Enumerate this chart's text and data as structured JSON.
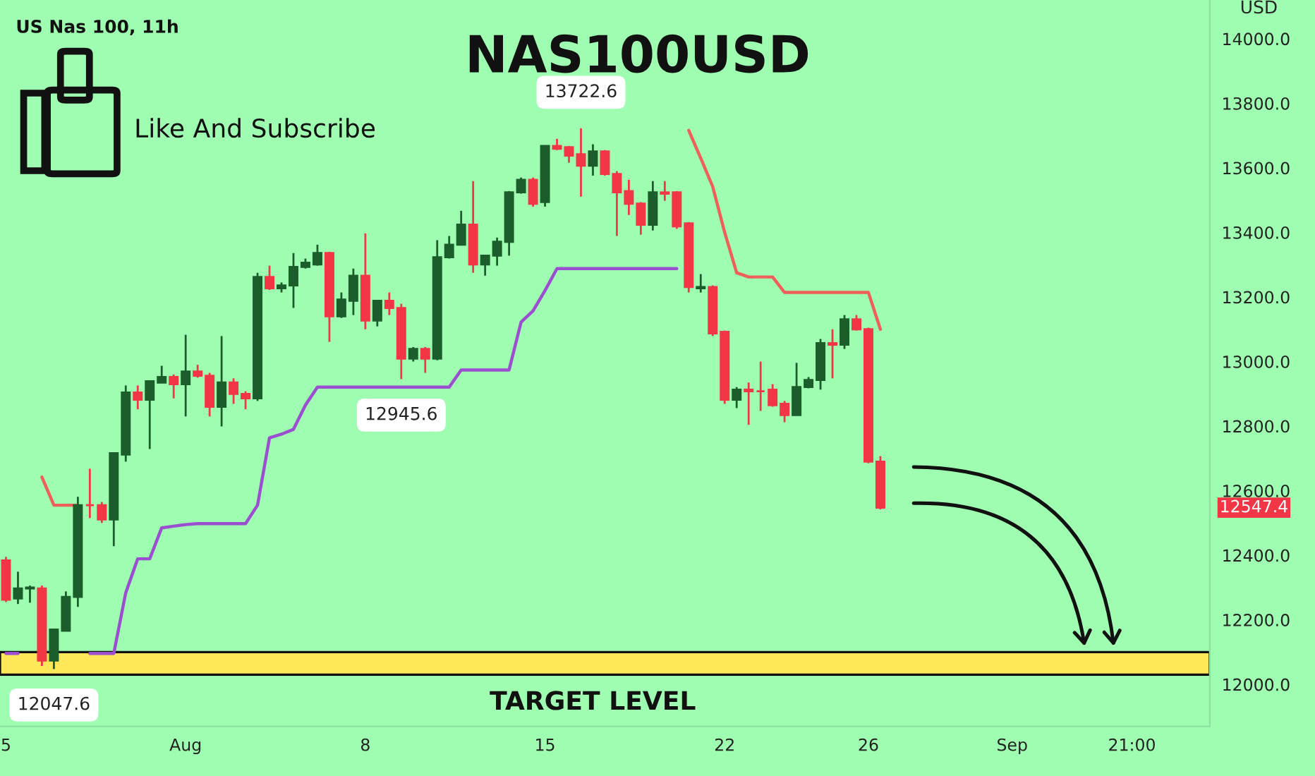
{
  "chart_data": {
    "type": "candlestick",
    "title": "NAS100USD",
    "ylabel": "USD",
    "categories": [
      "5",
      null,
      null,
      null,
      null,
      null,
      null,
      null,
      null,
      null,
      null,
      null,
      null,
      null,
      null,
      "Aug",
      null,
      null,
      null,
      null,
      null,
      null,
      null,
      null,
      null,
      null,
      null,
      null,
      null,
      null,
      "8",
      null,
      null,
      null,
      null,
      null,
      null,
      null,
      null,
      null,
      null,
      null,
      null,
      null,
      null,
      "15",
      null,
      null,
      null,
      null,
      null,
      null,
      null,
      null,
      null,
      null,
      null,
      null,
      null,
      null,
      "22",
      null,
      null,
      null,
      null,
      null,
      null,
      null,
      null,
      null,
      null,
      null,
      "26",
      null,
      null,
      null,
      null,
      null,
      null,
      null,
      null,
      null,
      null,
      null,
      "Sep",
      null,
      null,
      null,
      null,
      null,
      null,
      null,
      null,
      null,
      "21:00",
      null,
      null,
      null,
      null,
      null,
      null
    ],
    "ohlc": [
      [
        12384,
        12395,
        12255,
        12262
      ],
      [
        12266,
        12349,
        12249,
        12297
      ],
      [
        12297,
        12306,
        12253,
        12300
      ],
      [
        12297,
        12306,
        12057,
        12074
      ],
      [
        12074,
        12170,
        12047.6,
        12170
      ],
      [
        12166,
        12288,
        12166,
        12271
      ],
      [
        12271,
        12581,
        12240,
        12555
      ],
      [
        12555,
        12668,
        12515,
        12555
      ],
      [
        12555,
        12565,
        12500,
        12511
      ],
      [
        12511,
        12716,
        12428,
        12716
      ],
      [
        12712,
        12926,
        12690,
        12904
      ],
      [
        12904,
        12926,
        12852,
        12882
      ],
      [
        12882,
        12939,
        12729,
        12939
      ],
      [
        12935,
        12987,
        12935,
        12952
      ],
      [
        12952,
        12960,
        12886,
        12930
      ],
      [
        12930,
        13083,
        12830,
        12969
      ],
      [
        12969,
        12990,
        12950,
        12956
      ],
      [
        12956,
        12965,
        12830,
        12860
      ],
      [
        12860,
        13079,
        12799,
        12935
      ],
      [
        12935,
        12948,
        12869,
        12900
      ],
      [
        12900,
        12908,
        12852,
        12886
      ],
      [
        12886,
        13275,
        12878,
        13262
      ],
      [
        13262,
        13297,
        13222,
        13227
      ],
      [
        13227,
        13245,
        13214,
        13236
      ],
      [
        13236,
        13336,
        13166,
        13293
      ],
      [
        13293,
        13319,
        13288,
        13306
      ],
      [
        13301,
        13362,
        13297,
        13336
      ],
      [
        13336,
        13340,
        13061,
        13140
      ],
      [
        13140,
        13214,
        13135,
        13192
      ],
      [
        13188,
        13288,
        13144,
        13266
      ],
      [
        13266,
        13397,
        13100,
        13127
      ],
      [
        13127,
        13188,
        13109,
        13188
      ],
      [
        13188,
        13214,
        13144,
        13166
      ],
      [
        13166,
        13179,
        12945.6,
        13009
      ],
      [
        13009,
        13045,
        13000,
        13039
      ],
      [
        13039,
        13045,
        12965,
        13009
      ],
      [
        13009,
        13376,
        13004,
        13323
      ],
      [
        13323,
        13389,
        13319,
        13362
      ],
      [
        13362,
        13467,
        13362,
        13424
      ],
      [
        13424,
        13559,
        13275,
        13301
      ],
      [
        13301,
        13328,
        13266,
        13328
      ],
      [
        13328,
        13384,
        13297,
        13371
      ],
      [
        13371,
        13528,
        13328,
        13524
      ],
      [
        13524,
        13570,
        13520,
        13563
      ],
      [
        13563,
        13570,
        13480,
        13489
      ],
      [
        13494,
        13668,
        13480,
        13668
      ],
      [
        13668,
        13690,
        13655,
        13659
      ],
      [
        13664,
        13668,
        13616,
        13638
      ],
      [
        13642,
        13722.6,
        13511,
        13607
      ],
      [
        13607,
        13673,
        13576,
        13651
      ],
      [
        13651,
        13655,
        13576,
        13581
      ],
      [
        13581,
        13590,
        13389,
        13524
      ],
      [
        13528,
        13563,
        13454,
        13489
      ],
      [
        13489,
        13494,
        13393,
        13424
      ],
      [
        13424,
        13559,
        13406,
        13524
      ],
      [
        13524,
        13559,
        13498,
        13520
      ],
      [
        13524,
        13528,
        13411,
        13419
      ],
      [
        13428,
        13432,
        13214,
        13231
      ],
      [
        13227,
        13271,
        13214,
        13231
      ],
      [
        13231,
        13236,
        13079,
        13087
      ],
      [
        13092,
        13096,
        12869,
        12882
      ],
      [
        12882,
        12921,
        12856,
        12913
      ],
      [
        12913,
        12935,
        12804,
        12908
      ],
      [
        12908,
        13000,
        12847,
        12908
      ],
      [
        12913,
        12930,
        12860,
        12865
      ],
      [
        12869,
        12878,
        12812,
        12834
      ],
      [
        12834,
        12996,
        12834,
        12921
      ],
      [
        12921,
        12952,
        12917,
        12943
      ],
      [
        12943,
        13070,
        12913,
        13057
      ],
      [
        13057,
        13100,
        12948,
        13052
      ],
      [
        13052,
        13144,
        13039,
        13131
      ],
      [
        13131,
        13144,
        13096,
        13100
      ],
      [
        13100,
        13105,
        12685,
        12690
      ],
      [
        12690,
        12707,
        12542,
        12547.4
      ],
      null,
      null,
      null,
      null,
      null,
      null,
      null,
      null,
      null,
      null,
      null,
      null,
      null,
      null,
      null,
      null,
      null,
      null,
      null,
      null,
      null,
      null,
      null,
      null,
      null,
      null,
      null
    ],
    "series": [
      {
        "type": "line",
        "color": "#9b4fd0",
        "values": [
          12096,
          12096,
          null,
          null,
          null,
          null,
          null,
          12096,
          12096,
          12096,
          12284,
          12389,
          12389,
          12485,
          12490,
          12495,
          12498,
          12498,
          12498,
          12498,
          12498,
          12555,
          12764,
          12775,
          12790,
          12865,
          12921,
          12921,
          12921,
          12921,
          12921,
          12921,
          12921,
          12921,
          12921,
          12921,
          12921,
          12921,
          12974,
          12974,
          12974,
          12974,
          12974,
          13122,
          13157,
          13220,
          13288,
          13288,
          13288,
          13288,
          13288,
          13288,
          13288,
          13288,
          13288,
          13288,
          13288,
          null,
          null,
          null,
          null,
          null,
          null,
          null,
          null,
          null,
          null,
          null,
          null,
          null,
          null,
          null,
          null,
          null,
          null,
          null,
          null,
          null,
          null,
          null,
          null,
          null,
          null,
          null,
          null,
          null,
          null,
          null,
          null,
          null,
          null,
          null,
          null,
          null,
          null,
          null,
          null,
          null,
          null,
          null,
          null
        ]
      },
      {
        "type": "line",
        "color": "#f0605a",
        "values": [
          null,
          null,
          null,
          12642,
          12555,
          12555,
          12555,
          null,
          null,
          null,
          null,
          null,
          null,
          null,
          null,
          null,
          null,
          null,
          null,
          null,
          null,
          null,
          null,
          null,
          null,
          null,
          null,
          null,
          null,
          null,
          null,
          null,
          null,
          null,
          null,
          null,
          null,
          null,
          null,
          null,
          null,
          null,
          null,
          null,
          null,
          null,
          null,
          null,
          null,
          null,
          null,
          null,
          null,
          null,
          null,
          null,
          null,
          13716,
          13630,
          13542,
          13400,
          13275,
          13262,
          13262,
          13262,
          13214,
          13214,
          13214,
          13214,
          13214,
          13214,
          13214,
          13214,
          13100,
          null,
          null,
          null,
          null,
          null,
          null,
          null,
          null,
          null,
          null,
          null,
          null,
          null,
          null,
          null,
          null,
          null,
          null,
          null,
          null,
          null,
          null,
          null,
          null,
          null,
          null,
          null
        ]
      }
    ],
    "ylim": [
      11870,
      14120
    ],
    "yticks": [
      {
        "value": 12000,
        "label": "12000.0"
      },
      {
        "value": 12200,
        "label": "12200.0"
      },
      {
        "value": 12400,
        "label": "12400.0"
      },
      {
        "value": 12600,
        "label": "12600.0"
      },
      {
        "value": 12800,
        "label": "12800.0"
      },
      {
        "value": 13000,
        "label": "13000.0"
      },
      {
        "value": 13200,
        "label": "13200.0"
      },
      {
        "value": 13400,
        "label": "13400.0"
      },
      {
        "value": 13600,
        "label": "13600.0"
      },
      {
        "value": 13800,
        "label": "13800.0"
      },
      {
        "value": 14000,
        "label": "14000.0"
      }
    ],
    "bands": [
      {
        "axis": "y",
        "from": 12030,
        "to": 12100,
        "label": "TARGET LEVEL",
        "color": "#ffe75a"
      }
    ],
    "annotations": [
      "US Nas 100, 11h",
      "Like And Subscribe",
      "12547.4",
      {
        "text": "12047.6",
        "y": 12047.6
      },
      {
        "text": "12945.6",
        "y": 12945.6
      },
      {
        "text": "13722.6",
        "y": 13722.6
      }
    ],
    "grid": false,
    "legend": false
  }
}
